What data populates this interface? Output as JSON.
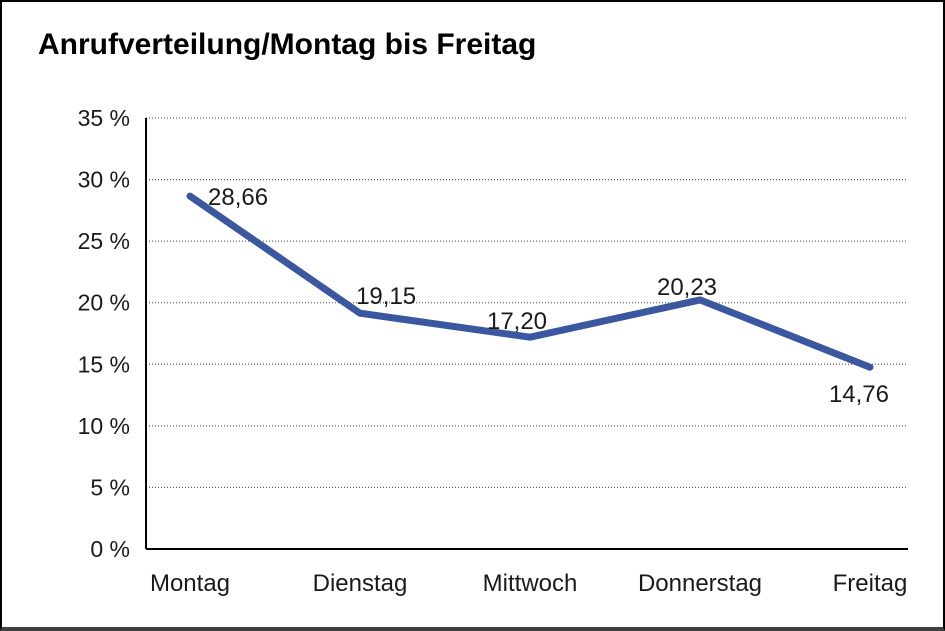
{
  "page": {
    "title": "Anrufverteilung/Montag bis Freitag"
  },
  "chart_data": {
    "type": "line",
    "title": "Anrufverteilung/Montag bis Freitag",
    "categories": [
      "Montag",
      "Dienstag",
      "Mittwoch",
      "Donnerstag",
      "Freitag"
    ],
    "values": [
      28.66,
      19.15,
      17.2,
      20.23,
      14.76
    ],
    "value_labels": [
      "28,66",
      "19,15",
      "17,20",
      "20,23",
      "14,76"
    ],
    "series_name": "Anrufverteilung",
    "xlabel": "",
    "ylabel": "",
    "ylim": [
      0,
      35
    ],
    "y_tick_values": [
      0,
      5,
      10,
      15,
      20,
      25,
      30,
      35
    ],
    "y_tick_labels": [
      "0 %",
      "5 %",
      "10 %",
      "15 %",
      "20 %",
      "25 %",
      "30 %",
      "35 %"
    ],
    "grid": "horizontal dotted lines at each 5% step",
    "legend": "none",
    "line_color": "#3A57A0",
    "axis_color": "#000000",
    "gridline_color": "#444444",
    "label_color": "#1a1a1a"
  }
}
